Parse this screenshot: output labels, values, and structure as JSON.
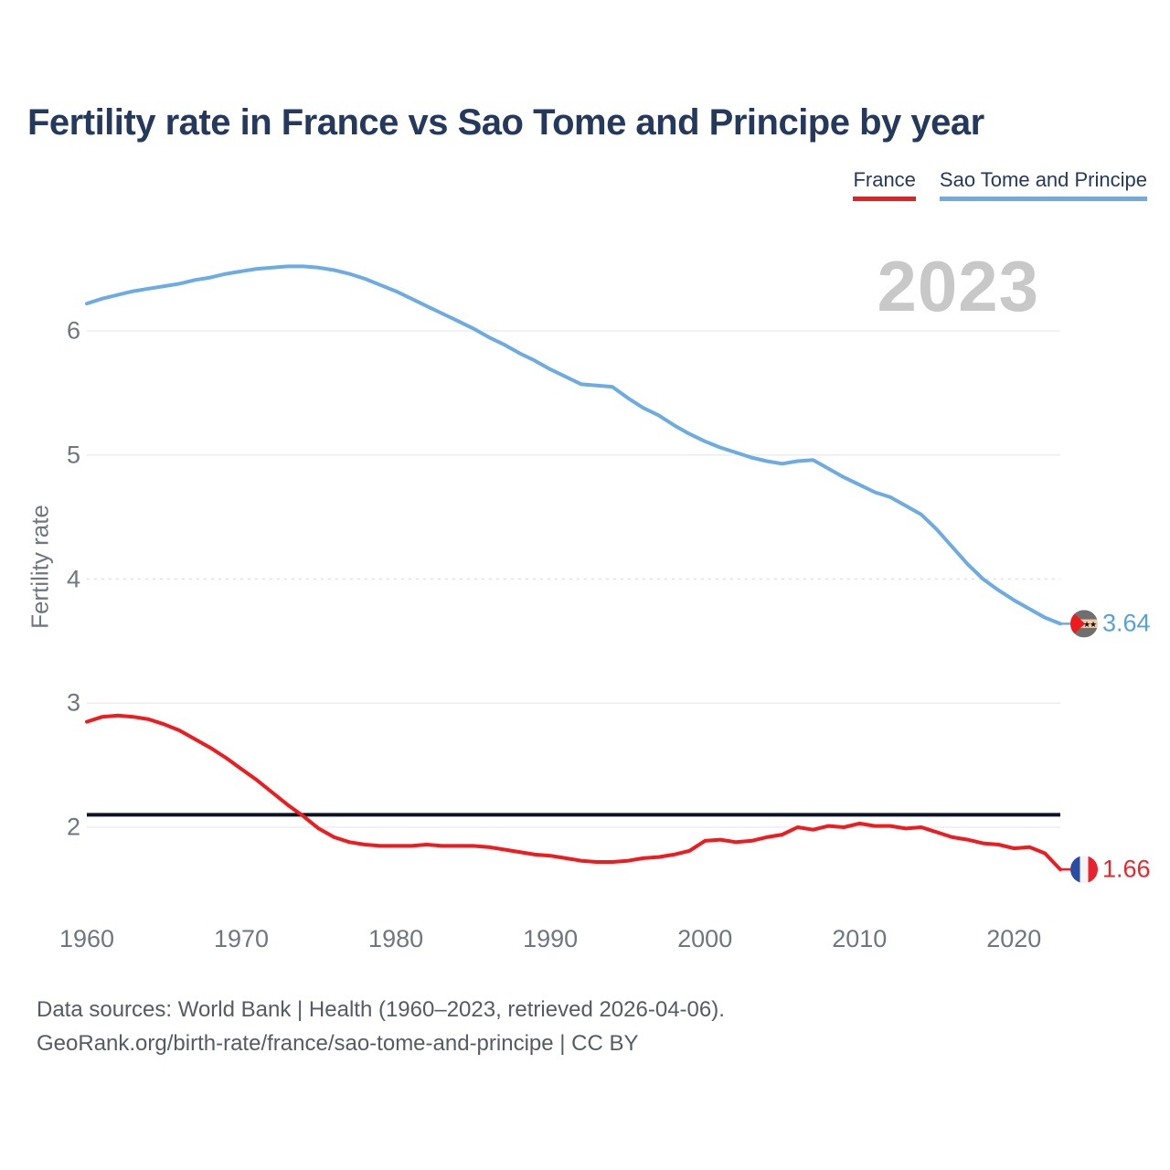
{
  "title": "Fertility rate in France vs Sao Tome and Principe by year",
  "legend": {
    "items": [
      {
        "label": "France",
        "color": "#ee1b1f"
      },
      {
        "label": "Sao Tome and Principe",
        "color": "#6cace3"
      }
    ]
  },
  "watermark": "2023",
  "axes": {
    "y": {
      "label": "Fertility rate",
      "ticks": [
        2,
        3,
        4,
        5,
        6
      ]
    },
    "x": {
      "ticks": [
        1960,
        1970,
        1980,
        1990,
        2000,
        2010,
        2020
      ]
    }
  },
  "footer": {
    "line1": "Data sources: World Bank | Health (1960–2023, retrieved 2026-04-06).",
    "line2": "GeoRank.org/birth-rate/france/sao-tome-and-principe | CC BY"
  },
  "flags": {
    "france": {
      "blue": "#2a4da0",
      "white": "#f4f4f6",
      "red": "#e8232e"
    },
    "sao_tome": {
      "band": "#6f6f6f",
      "middle": "#f4c7a6",
      "triangle": "#ef1a1d",
      "star": "#111111"
    }
  },
  "chart_data": {
    "type": "line",
    "title": "Fertility rate in France vs Sao Tome and Principe by year",
    "xlabel": "",
    "ylabel": "Fertility rate",
    "x_range": [
      1960,
      2023
    ],
    "x_step": 1,
    "ylim": [
      1.4,
      6.8
    ],
    "grid": "horizontal",
    "legend_position": "top-right",
    "reference_line": {
      "value": 2.1,
      "color": "#0c1322"
    },
    "series": [
      {
        "name": "France",
        "color": "#ee1b1f",
        "end_label": "1.66",
        "end_year": 2023,
        "values": [
          2.85,
          2.89,
          2.9,
          2.89,
          2.87,
          2.83,
          2.78,
          2.71,
          2.64,
          2.56,
          2.47,
          2.38,
          2.28,
          2.18,
          2.09,
          1.99,
          1.92,
          1.88,
          1.86,
          1.85,
          1.85,
          1.85,
          1.86,
          1.85,
          1.85,
          1.85,
          1.84,
          1.82,
          1.8,
          1.78,
          1.77,
          1.75,
          1.73,
          1.72,
          1.72,
          1.73,
          1.75,
          1.76,
          1.78,
          1.81,
          1.89,
          1.9,
          1.88,
          1.89,
          1.92,
          1.94,
          2.0,
          1.98,
          2.01,
          2.0,
          2.03,
          2.01,
          2.01,
          1.99,
          2.0,
          1.96,
          1.92,
          1.9,
          1.87,
          1.86,
          1.83,
          1.84,
          1.79,
          1.66
        ]
      },
      {
        "name": "Sao Tome and Principe",
        "color": "#6cace3",
        "end_label": "3.64",
        "end_year": 2023,
        "values": [
          6.22,
          6.26,
          6.29,
          6.32,
          6.34,
          6.36,
          6.38,
          6.41,
          6.43,
          6.46,
          6.48,
          6.5,
          6.51,
          6.52,
          6.52,
          6.51,
          6.49,
          6.46,
          6.42,
          6.37,
          6.32,
          6.26,
          6.2,
          6.14,
          6.08,
          6.02,
          5.95,
          5.89,
          5.82,
          5.76,
          5.69,
          5.63,
          5.57,
          5.56,
          5.55,
          5.46,
          5.38,
          5.32,
          5.24,
          5.17,
          5.11,
          5.06,
          5.02,
          4.98,
          4.95,
          4.93,
          4.95,
          4.96,
          4.89,
          4.82,
          4.76,
          4.7,
          4.66,
          4.59,
          4.52,
          4.4,
          4.26,
          4.12,
          4.0,
          3.91,
          3.83,
          3.76,
          3.69,
          3.64
        ]
      }
    ]
  }
}
